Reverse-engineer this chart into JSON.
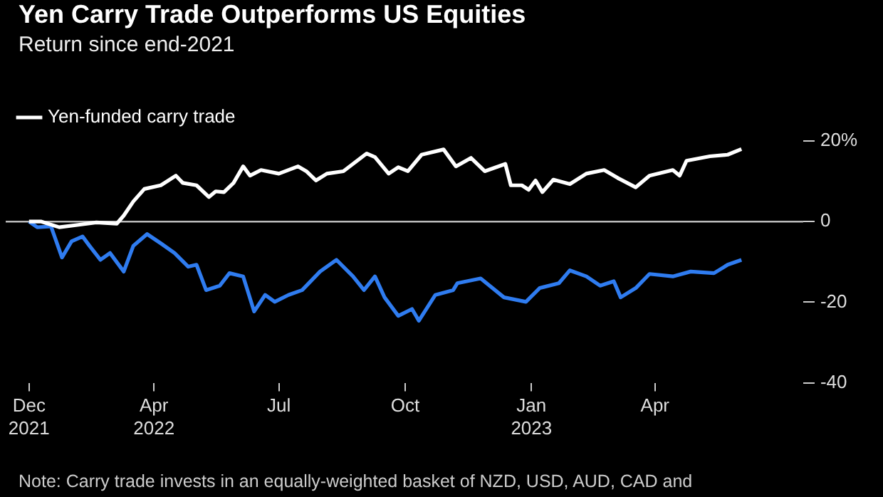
{
  "chart_data": {
    "type": "line",
    "title": "Yen Carry Trade Outperforms US Equities",
    "subtitle": "Return since end-2021",
    "xlim": [
      "2021-12-14",
      "2023-07-18"
    ],
    "xticks": [
      {
        "value": "2021-12-31",
        "label": "Dec 2021"
      },
      {
        "value": "2022-04-01",
        "label": "Apr 2022"
      },
      {
        "value": "2022-07-01",
        "label": "Jul"
      },
      {
        "value": "2022-10-01",
        "label": "Oct"
      },
      {
        "value": "2023-01-01",
        "label": "Jan 2023"
      },
      {
        "value": "2023-04-01",
        "label": "Apr"
      }
    ],
    "ylim": [
      -40,
      20
    ],
    "yticks": [
      {
        "value": 20,
        "label": "20%"
      },
      0,
      -20,
      -40
    ],
    "legend": "top left",
    "grid": false,
    "marker": "none",
    "line_style": "solid",
    "ref_lines": [
      {
        "axis": "y",
        "value": 0,
        "color": "#bbbbbb"
      }
    ],
    "annotations": [
      "Note: Carry trade invests in an equally-weighted basket of NZD, USD, AUD, CAD and"
    ],
    "series": [
      {
        "name": "Yen-funded carry trade",
        "color": "#ffffff",
        "x": [
          "2021-12-31",
          "2022-01-09",
          "2022-01-22",
          "2022-02-05",
          "2022-02-18",
          "2022-03-05",
          "2022-03-10",
          "2022-03-17",
          "2022-03-25",
          "2022-04-06",
          "2022-04-17",
          "2022-04-22",
          "2022-05-02",
          "2022-05-11",
          "2022-05-16",
          "2022-05-22",
          "2022-05-29",
          "2022-06-05",
          "2022-06-10",
          "2022-06-18",
          "2022-07-01",
          "2022-07-15",
          "2022-07-21",
          "2022-07-28",
          "2022-08-05",
          "2022-08-17",
          "2022-09-03",
          "2022-09-09",
          "2022-09-19",
          "2022-09-26",
          "2022-10-03",
          "2022-10-13",
          "2022-10-29",
          "2022-11-07",
          "2022-11-18",
          "2022-11-28",
          "2022-12-13",
          "2022-12-17",
          "2022-12-25",
          "2022-12-30",
          "2023-01-04",
          "2023-01-09",
          "2023-01-17",
          "2023-01-29",
          "2023-02-10",
          "2023-02-23",
          "2023-03-05",
          "2023-03-18",
          "2023-03-28",
          "2023-04-14",
          "2023-04-19",
          "2023-04-24",
          "2023-05-11",
          "2023-05-24",
          "2023-06-03"
        ],
        "values": [
          0,
          0,
          -1.4,
          -0.8,
          -0.2,
          -0.5,
          1.5,
          5,
          8.1,
          9,
          11.4,
          9.6,
          9,
          6.1,
          7.5,
          7.3,
          9.6,
          13.7,
          11.4,
          12.8,
          11.9,
          13.7,
          12.5,
          10.2,
          11.9,
          12.5,
          16.9,
          16,
          11.9,
          13.5,
          12.5,
          16.6,
          17.9,
          13.7,
          15.8,
          12.5,
          14.3,
          9,
          9,
          7.9,
          10.2,
          7.3,
          10.4,
          9.3,
          11.9,
          12.8,
          10.8,
          8.5,
          11.4,
          12.8,
          11.4,
          15.1,
          16.2,
          16.6,
          18
        ]
      },
      {
        "color": "#2f7cf0",
        "x": [
          "2021-12-31",
          "2022-01-06",
          "2022-01-16",
          "2022-01-24",
          "2022-01-31",
          "2022-02-08",
          "2022-02-13",
          "2022-02-21",
          "2022-02-28",
          "2022-03-10",
          "2022-03-17",
          "2022-03-27",
          "2022-04-06",
          "2022-04-16",
          "2022-04-26",
          "2022-05-02",
          "2022-05-09",
          "2022-05-19",
          "2022-05-26",
          "2022-06-05",
          "2022-06-13",
          "2022-06-21",
          "2022-06-28",
          "2022-07-08",
          "2022-07-18",
          "2022-07-31",
          "2022-08-12",
          "2022-08-24",
          "2022-09-01",
          "2022-09-09",
          "2022-09-16",
          "2022-09-26",
          "2022-10-06",
          "2022-10-11",
          "2022-10-23",
          "2022-11-05",
          "2022-11-08",
          "2022-11-25",
          "2022-12-12",
          "2022-12-28",
          "2023-01-07",
          "2023-01-21",
          "2023-01-29",
          "2023-02-10",
          "2023-02-20",
          "2023-03-02",
          "2023-03-07",
          "2023-03-18",
          "2023-03-28",
          "2023-04-14",
          "2023-04-27",
          "2023-05-14",
          "2023-05-24",
          "2023-06-03"
        ],
        "values": [
          0,
          -1.4,
          -1.2,
          -8.9,
          -4.9,
          -3.7,
          -6,
          -9.5,
          -7.8,
          -12.4,
          -6,
          -3.1,
          -5.4,
          -7.8,
          -11.2,
          -10.7,
          -17,
          -15.9,
          -12.8,
          -13.6,
          -22.3,
          -18.2,
          -19.9,
          -18.2,
          -17,
          -12.4,
          -9.5,
          -13.6,
          -17,
          -13.6,
          -18.8,
          -23.4,
          -21.7,
          -24.6,
          -18.2,
          -17,
          -15.3,
          -14.1,
          -18.8,
          -19.9,
          -16.5,
          -15.3,
          -12.1,
          -13.6,
          -15.9,
          -14.8,
          -18.8,
          -16.5,
          -13,
          -13.6,
          -12.4,
          -12.8,
          -10.7,
          -9.5
        ]
      }
    ]
  }
}
